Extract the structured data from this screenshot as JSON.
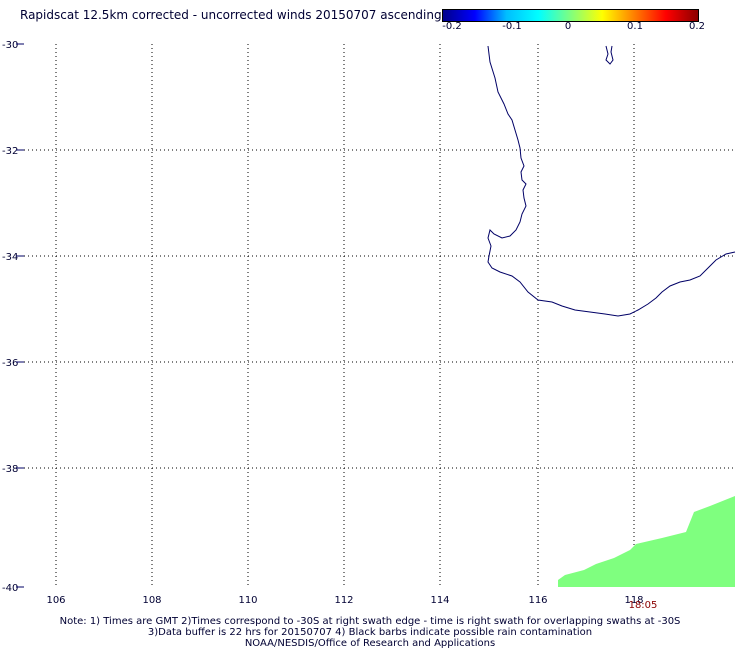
{
  "title": "Rapidscat 12.5km corrected - uncorrected winds 20150707 ascending",
  "colorbar": {
    "ticks": [
      "-0.2",
      "-0.1",
      "0",
      "0.1",
      "0.2"
    ],
    "range": [
      -0.2,
      0.2
    ],
    "colors": [
      "#00008b",
      "#0000ff",
      "#00bfff",
      "#00ffff",
      "#7fff7f",
      "#ffff00",
      "#ff7f00",
      "#ff0000",
      "#8b0000"
    ]
  },
  "map": {
    "lat_labels": [
      "-30",
      "-32",
      "-34",
      "-36",
      "-38",
      "-40"
    ],
    "lon_labels": [
      "106",
      "108",
      "110",
      "112",
      "114",
      "116",
      "118"
    ],
    "grid": "dotted",
    "coastline_color": "#000066",
    "swath_color": "#7fff7f",
    "swath_time": "18:05"
  },
  "notes": {
    "line1": "Note: 1) Times are GMT 2)Times correspond to -30S at right swath edge - time is right swath for overlapping swaths at -30S",
    "line2": "3)Data buffer is 22 hrs for 20150707 4) Black barbs indicate possible rain contamination",
    "line3": "NOAA/NESDIS/Office of Research and Applications"
  }
}
